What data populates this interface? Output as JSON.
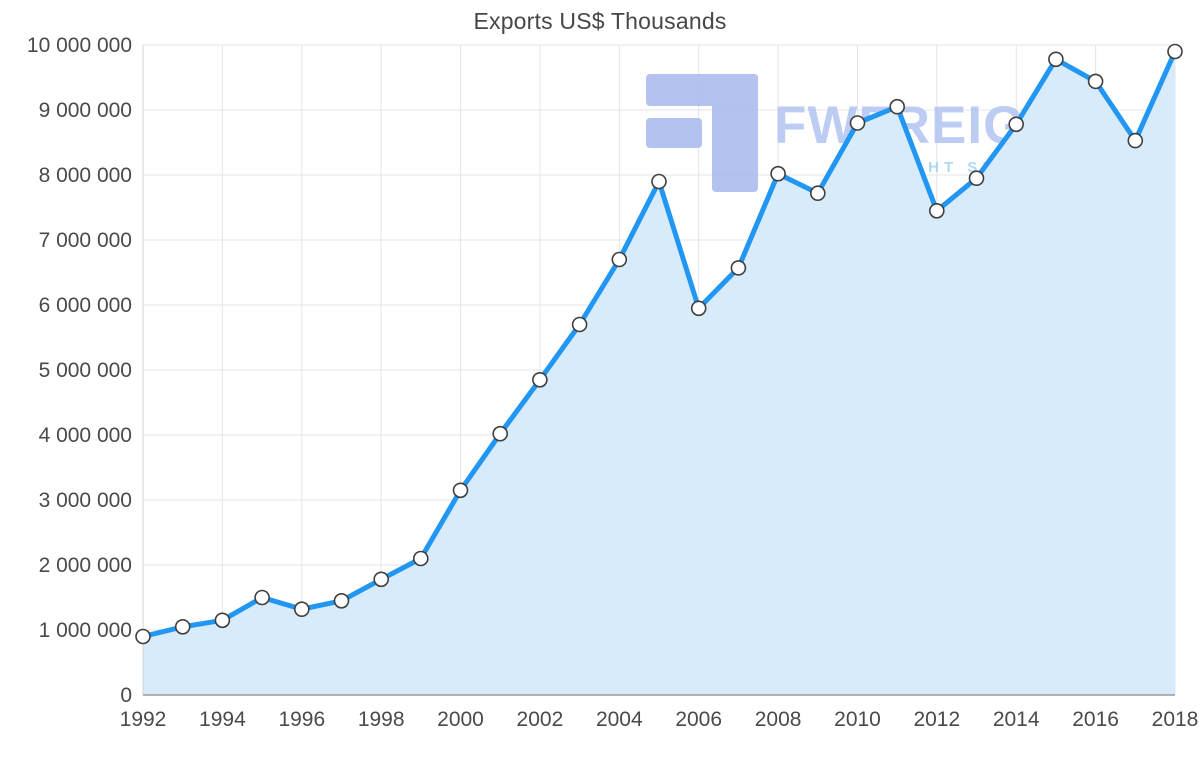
{
  "chart_data": {
    "type": "area",
    "title": "Exports US$ Thousands",
    "x": [
      1992,
      1993,
      1994,
      1995,
      1996,
      1997,
      1998,
      1999,
      2000,
      2001,
      2002,
      2003,
      2004,
      2005,
      2006,
      2007,
      2008,
      2009,
      2010,
      2011,
      2012,
      2013,
      2014,
      2015,
      2016,
      2017,
      2018
    ],
    "values": [
      900000,
      1050000,
      1150000,
      1500000,
      1320000,
      1450000,
      1780000,
      2100000,
      3150000,
      4020000,
      4850000,
      5700000,
      6700000,
      7900000,
      5950000,
      6570000,
      8020000,
      7720000,
      8800000,
      9050000,
      7450000,
      7950000,
      8780000,
      9780000,
      9440000,
      8530000,
      9900000
    ],
    "ylim": [
      0,
      10000000
    ],
    "y_tick_values": [
      0,
      1000000,
      2000000,
      3000000,
      4000000,
      5000000,
      6000000,
      7000000,
      8000000,
      9000000,
      10000000
    ],
    "y_tick_labels": [
      "0",
      "1 000 000",
      "2 000 000",
      "3 000 000",
      "4 000 000",
      "5 000 000",
      "6 000 000",
      "7 000 000",
      "8 000 000",
      "9 000 000",
      "10 000 000"
    ],
    "x_tick_years": [
      1992,
      1994,
      1996,
      1998,
      2000,
      2002,
      2004,
      2006,
      2008,
      2010,
      2012,
      2014,
      2016,
      2018
    ],
    "x_tick_labels": [
      "1992",
      "1994",
      "1996",
      "1998",
      "2000",
      "2002",
      "2004",
      "2006",
      "2008",
      "2010",
      "2012",
      "2014",
      "2016",
      "2018"
    ],
    "grid": true,
    "legend": "none",
    "colors": {
      "line": "#2196f3",
      "area": "#d7ebfb",
      "marker_fill": "#ffffff",
      "marker_stroke": "#3f3f3f",
      "grid": "#e4e4e4",
      "axis_left": "#d6d6d6",
      "axis_bottom": "#9b9b9b",
      "text": "#4a4a4a"
    }
  },
  "watermark": {
    "brand": "FWFREIGHT",
    "tagline": "FREIGHT SHIPPING",
    "logo_color": "#a7b8ee",
    "brand_color": "#b1c4f2",
    "tagline_color": "#a2d2f2"
  }
}
